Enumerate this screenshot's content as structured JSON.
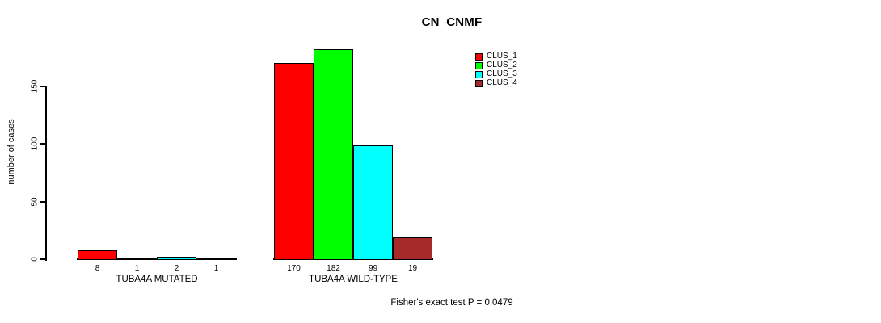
{
  "chart_data": {
    "type": "bar",
    "title": "CN_CNMF",
    "xlabel": "",
    "ylabel": "number of cases",
    "ylim": [
      0,
      150
    ],
    "yticks": [
      0,
      50,
      100,
      150
    ],
    "grid": false,
    "legend_position": "top-right",
    "categories": [
      "TUBA4A MUTATED",
      "TUBA4A WILD-TYPE"
    ],
    "series": [
      {
        "name": "CLUS_1",
        "color": "#FF0000",
        "values": [
          8,
          170
        ]
      },
      {
        "name": "CLUS_2",
        "color": "#00FF00",
        "values": [
          1,
          182
        ]
      },
      {
        "name": "CLUS_3",
        "color": "#00FFFF",
        "values": [
          2,
          99
        ]
      },
      {
        "name": "CLUS_4",
        "color": "#A52A2A",
        "values": [
          1,
          19
        ]
      }
    ],
    "bar_value_labels": [
      [
        "8",
        "1",
        "2",
        "1"
      ],
      [
        "170",
        "182",
        "99",
        "19"
      ]
    ],
    "annotation": "Fisher's exact test P = 0.0479",
    "colors": {
      "axis": "#000000",
      "text": "#000000",
      "background": "#FFFFFF"
    }
  }
}
